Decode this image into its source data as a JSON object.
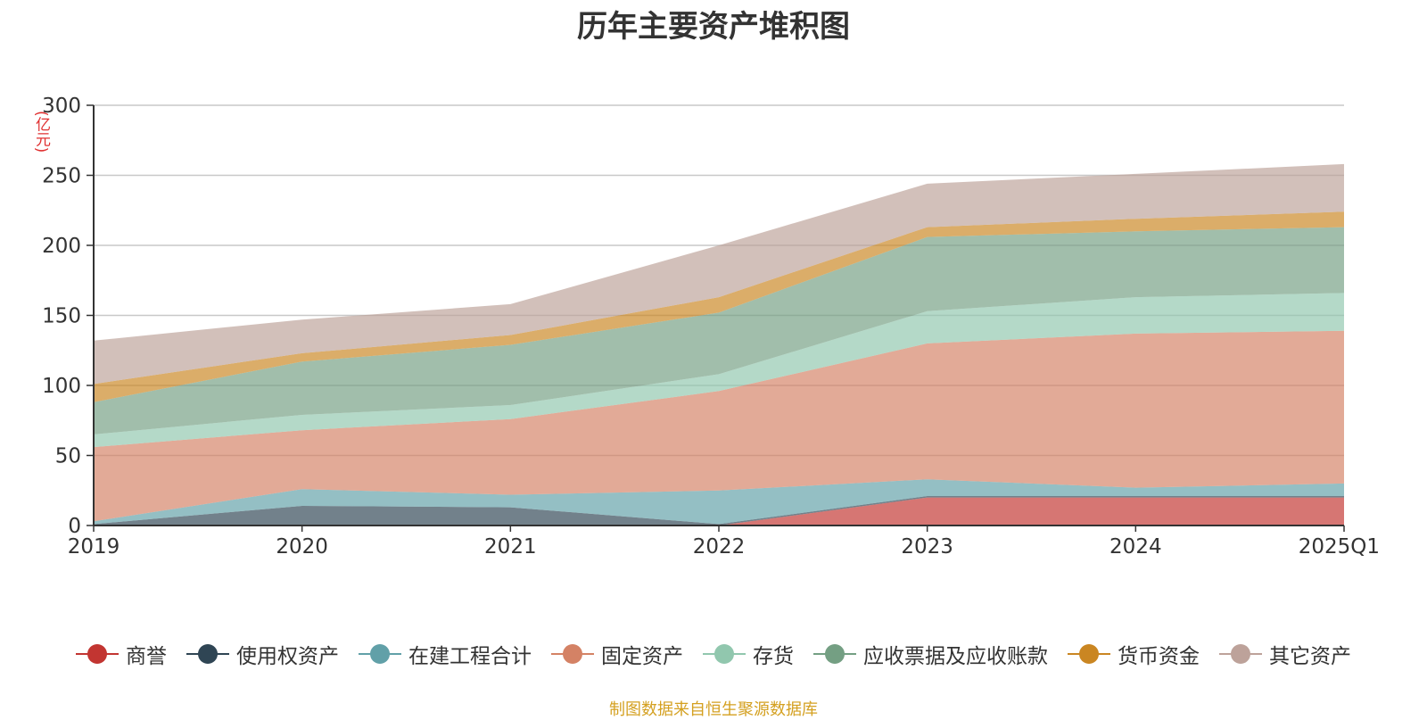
{
  "chart_data": {
    "type": "area",
    "stacked": true,
    "title": "历年主要资产堆积图",
    "ylabel": "(亿元)",
    "xlabel": "",
    "categories": [
      "2019",
      "2020",
      "2021",
      "2022",
      "2023",
      "2024",
      "2025Q1"
    ],
    "ylim": [
      0,
      300
    ],
    "yticks": [
      0,
      50,
      100,
      150,
      200,
      250,
      300
    ],
    "grid": true,
    "legend_position": "bottom",
    "series": [
      {
        "name": "商誉",
        "color": "#c23531",
        "values": [
          0,
          0,
          0,
          0,
          20,
          20,
          20
        ]
      },
      {
        "name": "使用权资产",
        "color": "#2f4554",
        "values": [
          1,
          14,
          13,
          1,
          1,
          1,
          1
        ]
      },
      {
        "name": "在建工程合计",
        "color": "#61a0a8",
        "values": [
          2,
          12,
          9,
          24,
          12,
          6,
          9
        ]
      },
      {
        "name": "固定资产",
        "color": "#d48265",
        "values": [
          53,
          42,
          54,
          71,
          97,
          110,
          109
        ]
      },
      {
        "name": "存货",
        "color": "#91c7ae",
        "values": [
          9,
          11,
          10,
          12,
          23,
          26,
          27
        ]
      },
      {
        "name": "应收票据及应收账款",
        "color": "#749f83",
        "values": [
          23,
          38,
          43,
          44,
          53,
          47,
          47
        ]
      },
      {
        "name": "货币资金",
        "color": "#ca8622",
        "values": [
          13,
          6,
          7,
          11,
          7,
          9,
          11
        ]
      },
      {
        "name": "其它资产",
        "color": "#bda29a",
        "values": [
          31,
          24,
          22,
          37,
          31,
          32,
          34
        ]
      }
    ]
  },
  "source_note": "制图数据来自恒生聚源数据库"
}
